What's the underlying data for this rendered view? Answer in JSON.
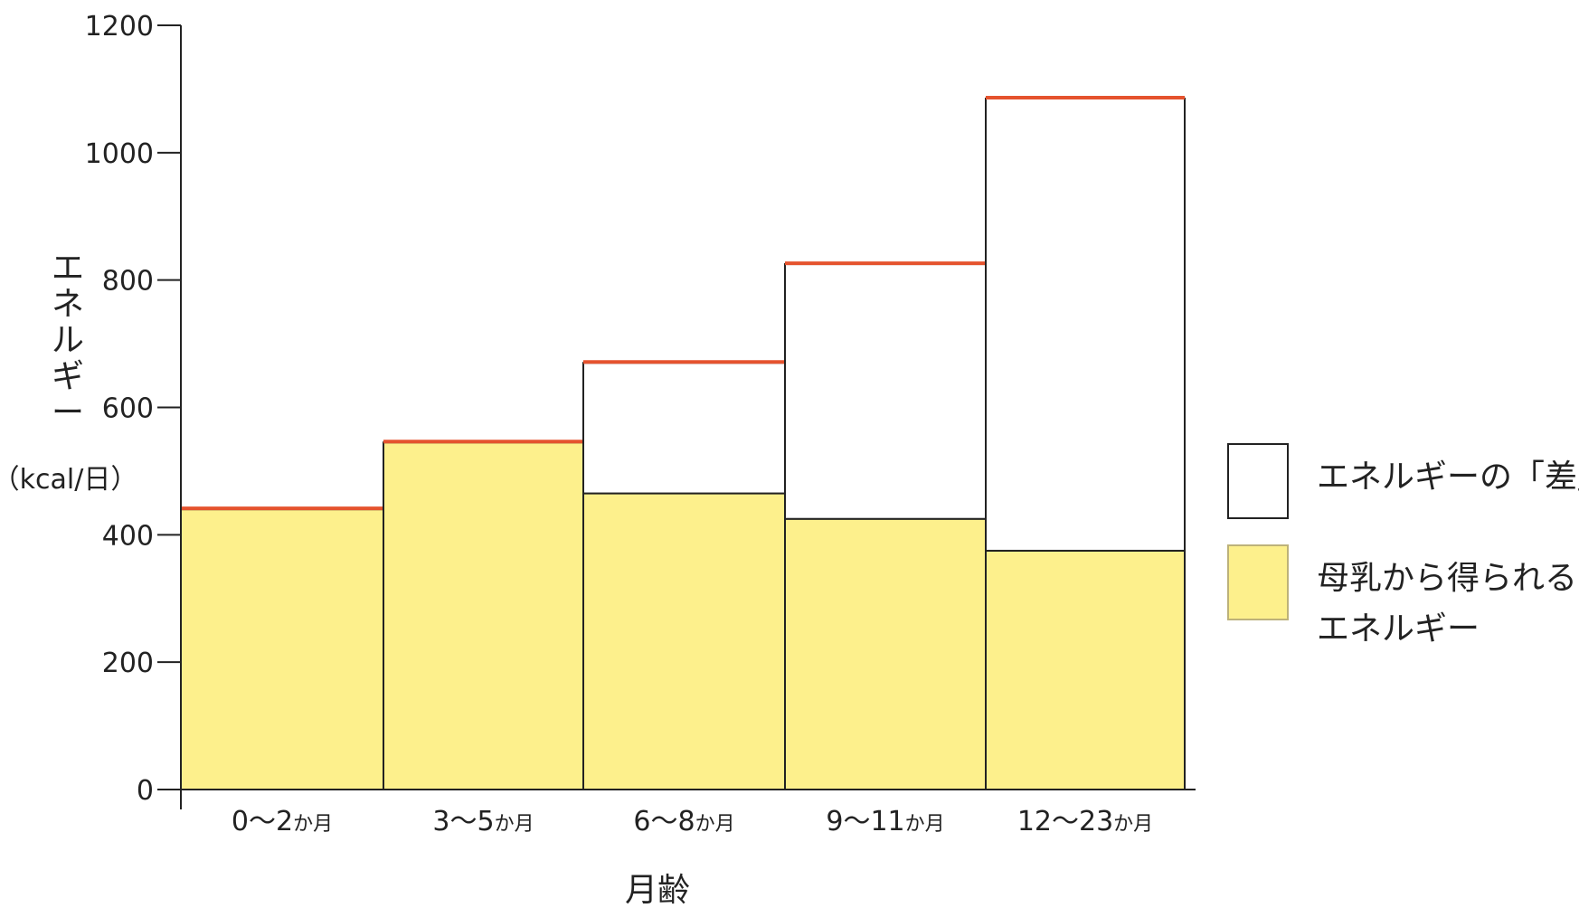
{
  "chart_data": {
    "type": "bar",
    "stacked": true,
    "categories": [
      {
        "num": "0～2",
        "unit": "か月"
      },
      {
        "num": "3～5",
        "unit": "か月"
      },
      {
        "num": "6～8",
        "unit": "か月"
      },
      {
        "num": "9～11",
        "unit": "か月"
      },
      {
        "num": "12～23",
        "unit": "か月"
      }
    ],
    "series": [
      {
        "name": "母乳から得られるエネルギー",
        "values": [
          440,
          545,
          465,
          425,
          375
        ],
        "color": "#fdf08c"
      },
      {
        "name": "エネルギーの「差」",
        "values": [
          0,
          0,
          205,
          400,
          710
        ],
        "color": "#ffffff"
      }
    ],
    "totals": [
      440,
      545,
      670,
      825,
      1085
    ],
    "top_line_color": "#e5532e",
    "ylim": [
      0,
      1200
    ],
    "yticks": [
      0,
      200,
      400,
      600,
      800,
      1000,
      1200
    ],
    "xlabel": "月齢",
    "ylabel": "エネルギー",
    "ylabel_unit": "（kcal/日）",
    "legend": {
      "position": "right",
      "items": [
        {
          "label_lines": [
            "エネルギーの「差」"
          ],
          "color": "#ffffff"
        },
        {
          "label_lines": [
            "母乳から得られる",
            "エネルギー"
          ],
          "color": "#fdf08c"
        }
      ]
    },
    "grid": false
  }
}
